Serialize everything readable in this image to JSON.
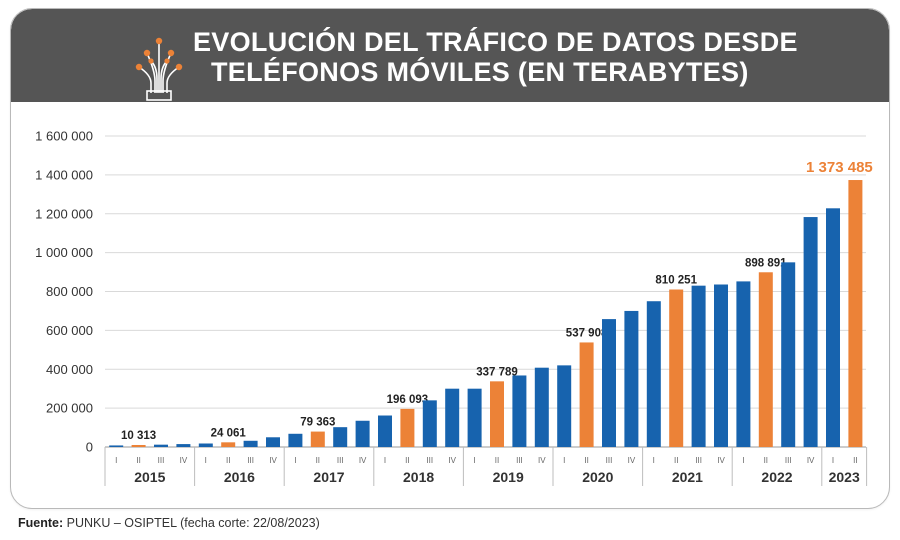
{
  "title_line1": "EVOLUCIÓN DEL TRÁFICO DE DATOS DESDE",
  "title_line2": "TELÉFONOS MÓVILES (EN TERABYTES)",
  "footer": {
    "label": "Fuente:",
    "text": "PUNKU – OSIPTEL (fecha corte: 22/08/2023)"
  },
  "colors": {
    "header": "#555555",
    "blue": "#1763ae",
    "orange": "#ec8237",
    "grid": "#d9d9d9"
  },
  "icon": "fiber-optic-icon",
  "chart_data": {
    "type": "bar",
    "ylim": [
      0,
      1600000
    ],
    "yticks": [
      0,
      200000,
      400000,
      600000,
      800000,
      1000000,
      1200000,
      1400000,
      1600000
    ],
    "ytick_labels": [
      "0",
      "200 000",
      "400 000",
      "600 000",
      "800 000",
      "1 000 000",
      "1 200 000",
      "1 400 000",
      "1 600 000"
    ],
    "grid": true,
    "years": [
      {
        "label": "2015",
        "quarters": [
          "I",
          "II",
          "III",
          "IV"
        ]
      },
      {
        "label": "2016",
        "quarters": [
          "I",
          "II",
          "III",
          "IV"
        ]
      },
      {
        "label": "2017",
        "quarters": [
          "I",
          "II",
          "III",
          "IV"
        ]
      },
      {
        "label": "2018",
        "quarters": [
          "I",
          "II",
          "III",
          "IV"
        ]
      },
      {
        "label": "2019",
        "quarters": [
          "I",
          "II",
          "III",
          "IV"
        ]
      },
      {
        "label": "2020",
        "quarters": [
          "I",
          "II",
          "III",
          "IV"
        ]
      },
      {
        "label": "2021",
        "quarters": [
          "I",
          "II",
          "III",
          "IV"
        ]
      },
      {
        "label": "2022",
        "quarters": [
          "I",
          "II",
          "III",
          "IV"
        ]
      },
      {
        "label": "2023",
        "quarters": [
          "I",
          "II"
        ]
      }
    ],
    "values": [
      8000,
      10313,
      12000,
      15000,
      18000,
      24061,
      32000,
      50000,
      68000,
      79363,
      102000,
      135000,
      162000,
      196093,
      240000,
      300000,
      300000,
      337789,
      368000,
      408000,
      420000,
      537908,
      658000,
      700000,
      750000,
      810251,
      830000,
      836000,
      852000,
      898891,
      950000,
      1183000,
      1228000,
      1373485
    ],
    "highlight": [
      false,
      true,
      false,
      false,
      false,
      true,
      false,
      false,
      false,
      true,
      false,
      false,
      false,
      true,
      false,
      false,
      false,
      true,
      false,
      false,
      false,
      true,
      false,
      false,
      false,
      true,
      false,
      false,
      false,
      true,
      false,
      false,
      false,
      true
    ],
    "data_labels": [
      "",
      "10 313",
      "",
      "",
      "",
      "24 061",
      "",
      "",
      "",
      "79 363",
      "",
      "",
      "",
      "196 093",
      "",
      "",
      "",
      "337 789",
      "",
      "",
      "",
      "537 908",
      "",
      "",
      "",
      "810 251",
      "",
      "",
      "",
      "898 891",
      "",
      "",
      "",
      "1 373 485"
    ]
  }
}
